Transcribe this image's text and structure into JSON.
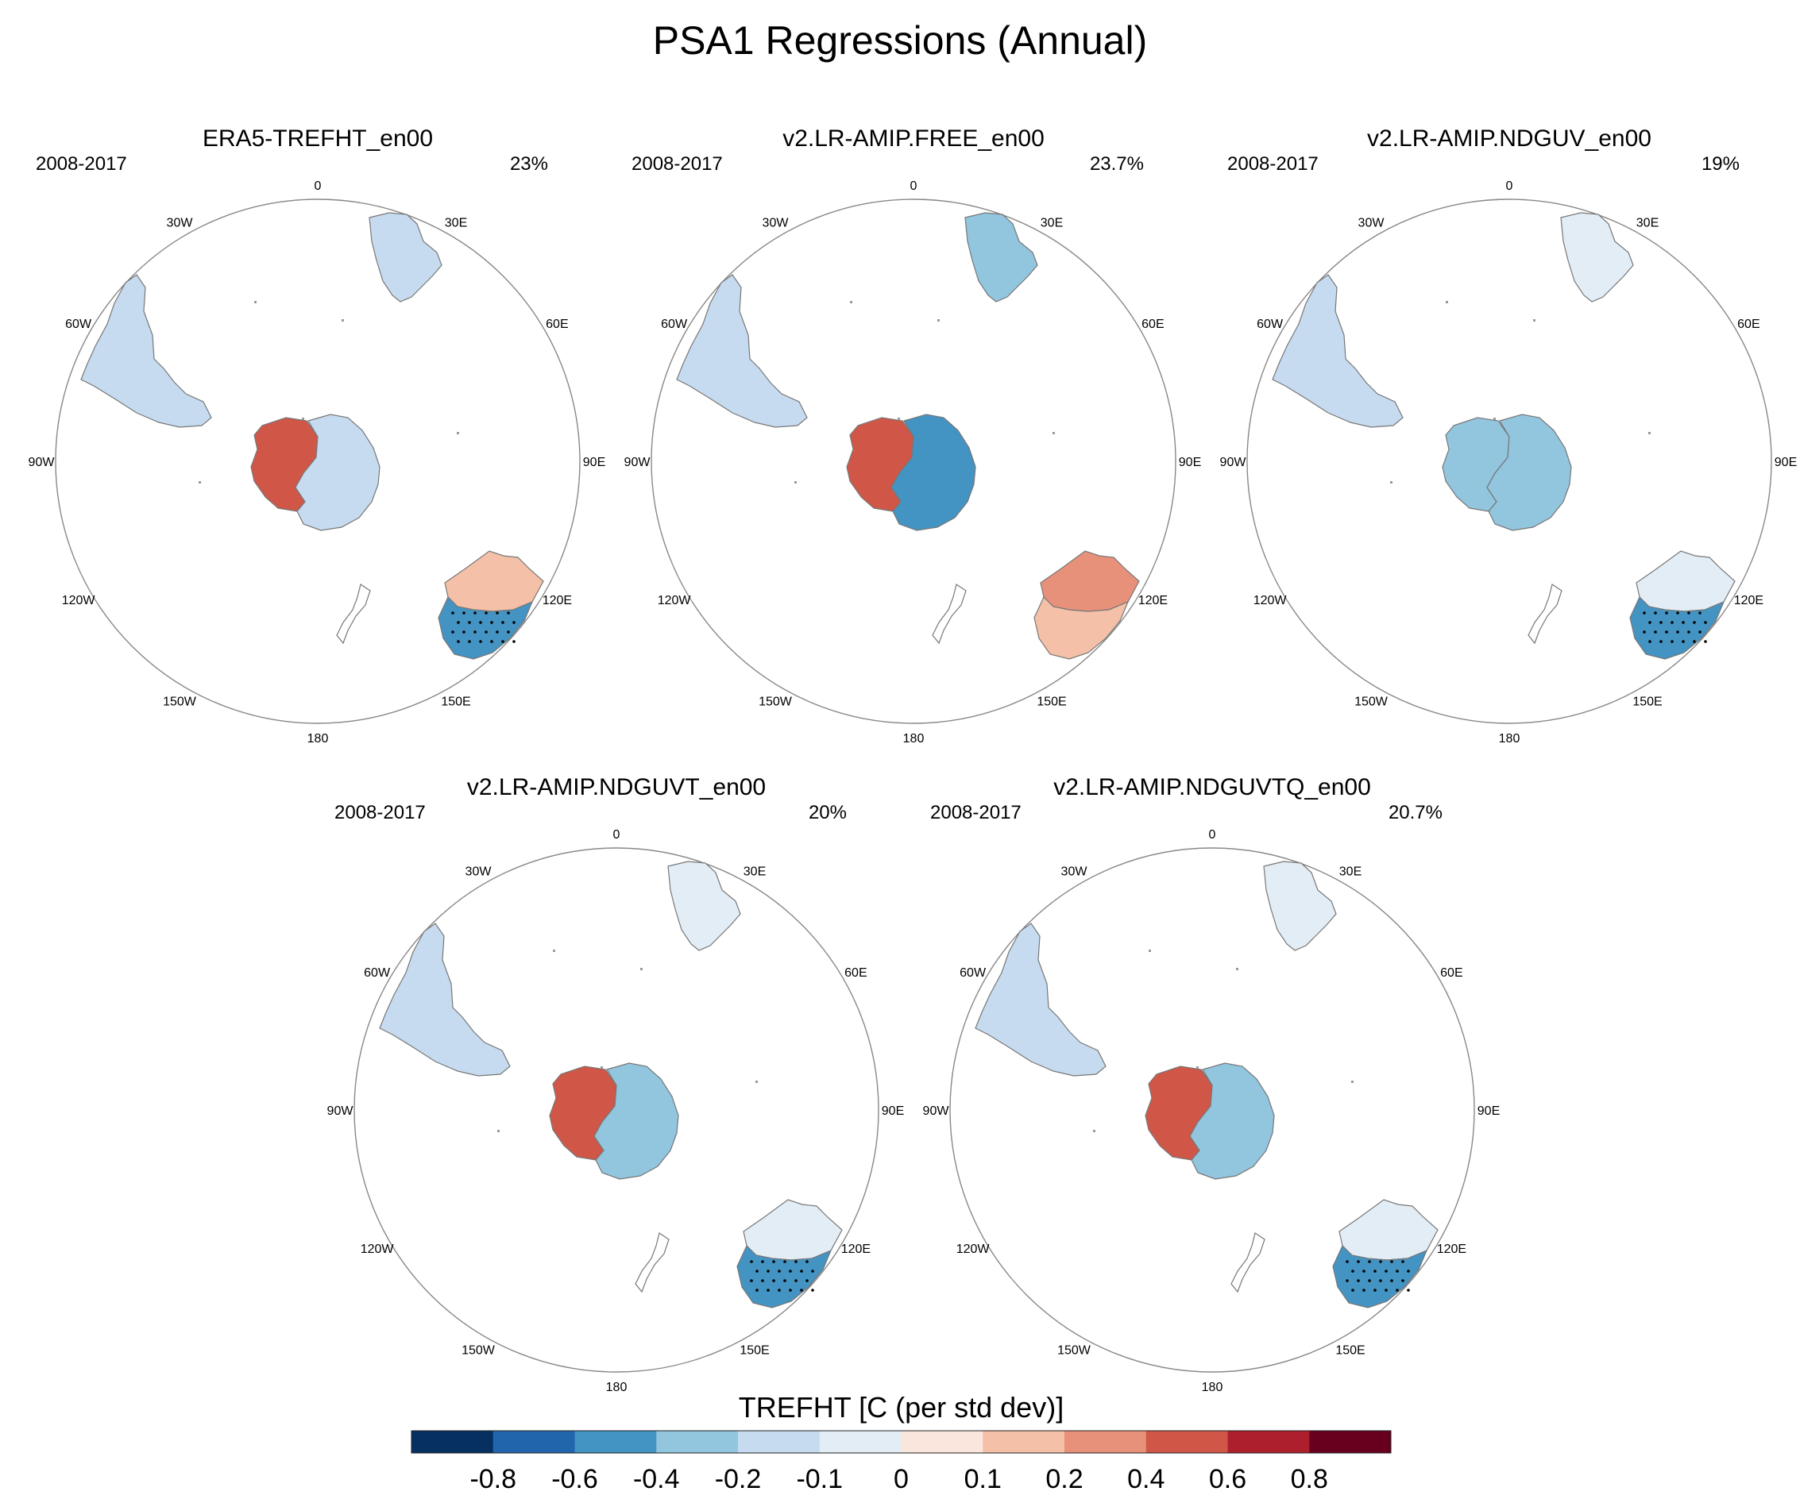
{
  "chart_data": {
    "type": "heatmap",
    "title": "PSA1 Regressions (Annual)",
    "variable": "TREFHT [C (per std dev)]",
    "colorbar": {
      "label": "TREFHT [C (per std dev)]",
      "levels": [
        "-0.8",
        "-0.6",
        "-0.4",
        "-0.2",
        "-0.1",
        "0",
        "0.1",
        "0.2",
        "0.4",
        "0.6",
        "0.8"
      ],
      "colors": [
        "#053061",
        "#2166ac",
        "#4393c3",
        "#92c5de",
        "#c6dbef",
        "#e3edf5",
        "#fae6dc",
        "#f4c0a8",
        "#e8917a",
        "#d05747",
        "#ad1f2d",
        "#67001f"
      ]
    },
    "longitude_labels": [
      "0",
      "30E",
      "60E",
      "90E",
      "120E",
      "150E",
      "180",
      "150W",
      "120W",
      "90W",
      "60W",
      "30W"
    ],
    "panels": [
      {
        "title": "ERA5-TREFHT_en00",
        "period": "2008-2017",
        "percent": "23%",
        "regions": [
          {
            "name": "Africa",
            "value": -0.2
          },
          {
            "name": "South America",
            "value": -0.2
          },
          {
            "name": "Antarctica West",
            "value": 0.4
          },
          {
            "name": "Antarctica East",
            "value": -0.2
          },
          {
            "name": "Australia North",
            "value": 0.1
          },
          {
            "name": "Australia South",
            "value": -0.6
          },
          {
            "name": "New Zealand",
            "value": 0
          }
        ]
      },
      {
        "title": "v2.LR-AMIP.FREE_en00",
        "period": "2008-2017",
        "percent": "23.7%",
        "regions": [
          {
            "name": "Africa",
            "value": -0.4
          },
          {
            "name": "South America",
            "value": -0.2
          },
          {
            "name": "Antarctica West",
            "value": 0.4
          },
          {
            "name": "Antarctica East",
            "value": -0.6
          },
          {
            "name": "Australia North",
            "value": 0.2
          },
          {
            "name": "Australia South",
            "value": 0.1
          },
          {
            "name": "New Zealand",
            "value": 0
          }
        ]
      },
      {
        "title": "v2.LR-AMIP.NDGUV_en00",
        "period": "2008-2017",
        "percent": "19%",
        "regions": [
          {
            "name": "Africa",
            "value": -0.1
          },
          {
            "name": "South America",
            "value": -0.2
          },
          {
            "name": "Antarctica West",
            "value": -0.4
          },
          {
            "name": "Antarctica East",
            "value": -0.4
          },
          {
            "name": "Australia North",
            "value": -0.1
          },
          {
            "name": "Australia South",
            "value": -0.6
          },
          {
            "name": "New Zealand",
            "value": 0
          }
        ]
      },
      {
        "title": "v2.LR-AMIP.NDGUVT_en00",
        "period": "2008-2017",
        "percent": "20%",
        "regions": [
          {
            "name": "Africa",
            "value": -0.1
          },
          {
            "name": "South America",
            "value": -0.2
          },
          {
            "name": "Antarctica West",
            "value": 0.4
          },
          {
            "name": "Antarctica East",
            "value": -0.4
          },
          {
            "name": "Australia North",
            "value": -0.1
          },
          {
            "name": "Australia South",
            "value": -0.6
          },
          {
            "name": "New Zealand",
            "value": 0
          }
        ]
      },
      {
        "title": "v2.LR-AMIP.NDGUVTQ_en00",
        "period": "2008-2017",
        "percent": "20.7%",
        "regions": [
          {
            "name": "Africa",
            "value": -0.1
          },
          {
            "name": "South America",
            "value": -0.2
          },
          {
            "name": "Antarctica West",
            "value": 0.4
          },
          {
            "name": "Antarctica East",
            "value": -0.4
          },
          {
            "name": "Australia North",
            "value": -0.1
          },
          {
            "name": "Australia South",
            "value": -0.6
          },
          {
            "name": "New Zealand",
            "value": 0
          }
        ]
      }
    ]
  }
}
